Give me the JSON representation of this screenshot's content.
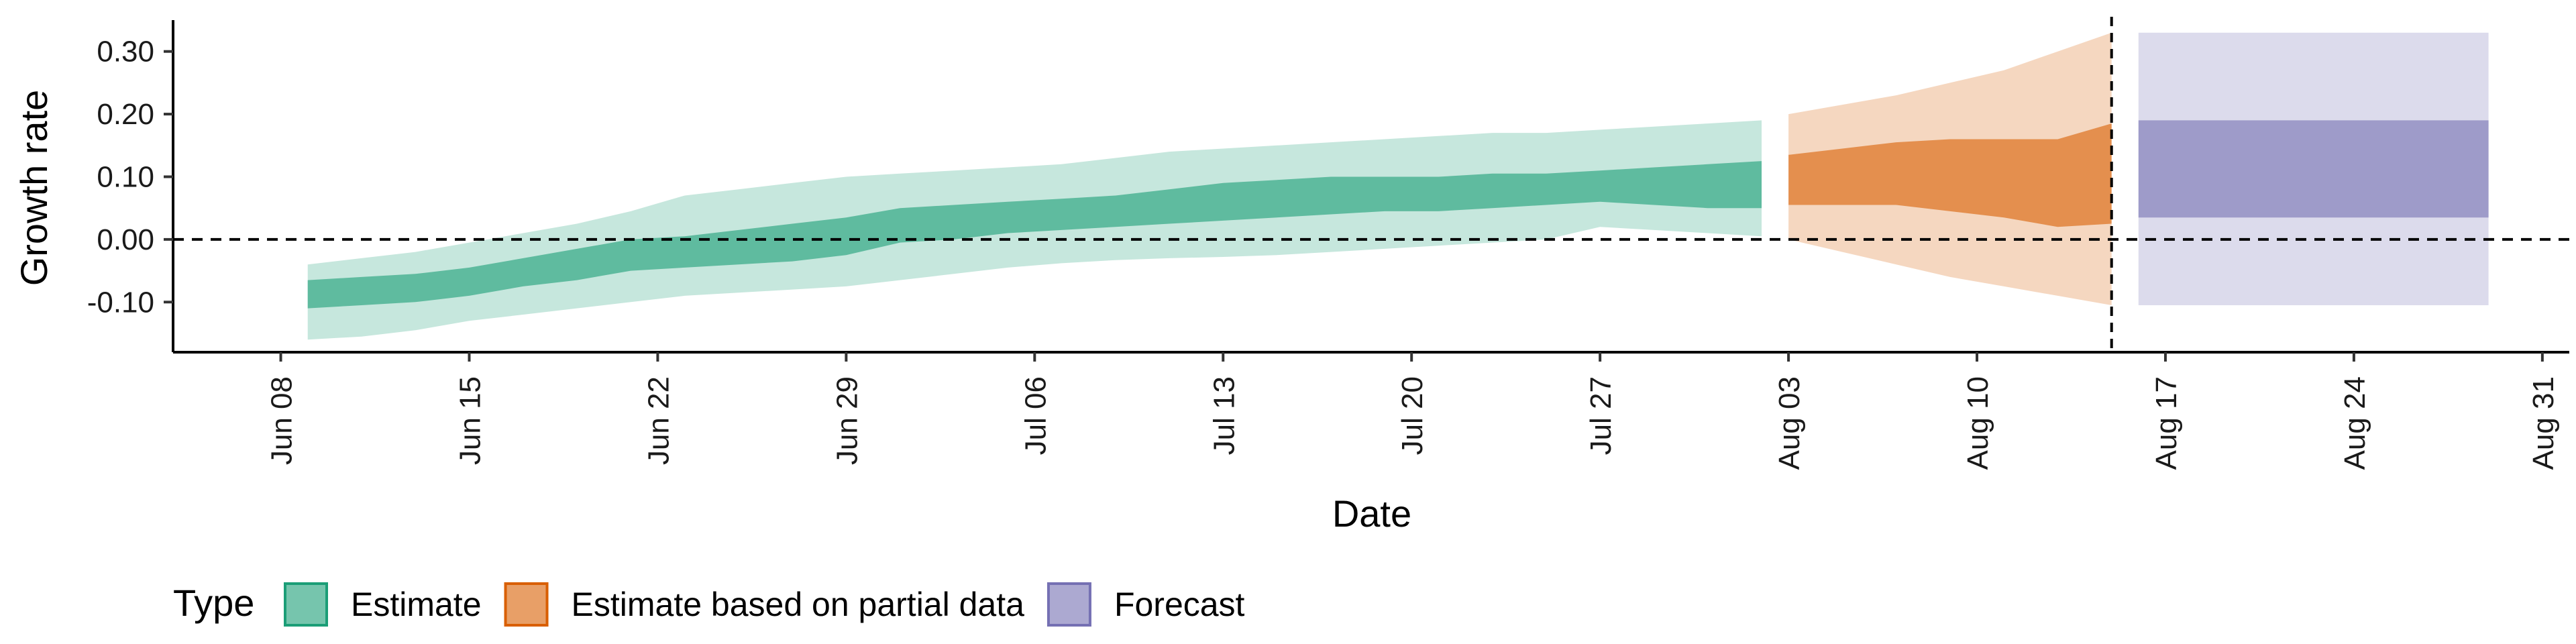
{
  "chart_data": {
    "type": "area",
    "xlabel": "Date",
    "ylabel": "Growth rate",
    "ylim": [
      -0.18,
      0.35
    ],
    "xlim": [
      "2020-06-04",
      "2020-09-01"
    ],
    "y_ticks": [
      -0.1,
      0.0,
      0.1,
      0.2,
      0.3
    ],
    "y_tick_labels": [
      "-0.10",
      "0.00",
      "0.10",
      "0.20",
      "0.30"
    ],
    "x_ticks": [
      "2020-06-08",
      "2020-06-15",
      "2020-06-22",
      "2020-06-29",
      "2020-07-06",
      "2020-07-13",
      "2020-07-20",
      "2020-07-27",
      "2020-08-03",
      "2020-08-10",
      "2020-08-17",
      "2020-08-24",
      "2020-08-31"
    ],
    "x_tick_labels": [
      "Jun 08",
      "Jun 15",
      "Jun 22",
      "Jun 29",
      "Jul 06",
      "Jul 13",
      "Jul 20",
      "Jul 27",
      "Aug 03",
      "Aug 10",
      "Aug 17",
      "Aug 24",
      "Aug 31"
    ],
    "reference_lines": {
      "y": 0.0,
      "x": "2020-08-15"
    },
    "grid": false,
    "legend": {
      "title": "Type",
      "position": "bottom-left",
      "entries": [
        "Estimate",
        "Estimate based on partial data",
        "Forecast"
      ]
    },
    "series": [
      {
        "name": "Estimate",
        "color": "#1b9e77",
        "outer_alpha": 0.25,
        "inner_alpha": 0.6,
        "x": [
          "2020-06-09",
          "2020-06-11",
          "2020-06-13",
          "2020-06-15",
          "2020-06-17",
          "2020-06-19",
          "2020-06-21",
          "2020-06-23",
          "2020-06-25",
          "2020-06-27",
          "2020-06-29",
          "2020-07-01",
          "2020-07-03",
          "2020-07-05",
          "2020-07-07",
          "2020-07-09",
          "2020-07-11",
          "2020-07-13",
          "2020-07-15",
          "2020-07-17",
          "2020-07-19",
          "2020-07-21",
          "2020-07-23",
          "2020-07-25",
          "2020-07-27",
          "2020-07-29",
          "2020-07-31",
          "2020-08-02"
        ],
        "outer_lower": [
          -0.16,
          -0.155,
          -0.145,
          -0.13,
          -0.12,
          -0.11,
          -0.1,
          -0.09,
          -0.085,
          -0.08,
          -0.075,
          -0.065,
          -0.055,
          -0.045,
          -0.038,
          -0.033,
          -0.03,
          -0.028,
          -0.025,
          -0.02,
          -0.015,
          -0.01,
          -0.005,
          0.0,
          0.02,
          0.015,
          0.01,
          0.005
        ],
        "outer_upper": [
          -0.04,
          -0.03,
          -0.02,
          -0.005,
          0.01,
          0.025,
          0.045,
          0.07,
          0.08,
          0.09,
          0.1,
          0.105,
          0.11,
          0.115,
          0.12,
          0.13,
          0.14,
          0.145,
          0.15,
          0.155,
          0.16,
          0.165,
          0.17,
          0.17,
          0.175,
          0.18,
          0.185,
          0.19
        ],
        "inner_lower": [
          -0.11,
          -0.105,
          -0.1,
          -0.09,
          -0.075,
          -0.065,
          -0.05,
          -0.045,
          -0.04,
          -0.035,
          -0.025,
          -0.005,
          0.0,
          0.01,
          0.015,
          0.02,
          0.025,
          0.03,
          0.035,
          0.04,
          0.045,
          0.045,
          0.05,
          0.055,
          0.06,
          0.055,
          0.05,
          0.05
        ],
        "inner_upper": [
          -0.065,
          -0.06,
          -0.055,
          -0.045,
          -0.03,
          -0.015,
          0.0,
          0.005,
          0.015,
          0.025,
          0.035,
          0.05,
          0.055,
          0.06,
          0.065,
          0.07,
          0.08,
          0.09,
          0.095,
          0.1,
          0.1,
          0.1,
          0.105,
          0.105,
          0.11,
          0.115,
          0.12,
          0.125
        ]
      },
      {
        "name": "Estimate based on partial data",
        "color": "#d95f02",
        "outer_alpha": 0.25,
        "inner_alpha": 0.6,
        "x": [
          "2020-08-03",
          "2020-08-05",
          "2020-08-07",
          "2020-08-09",
          "2020-08-11",
          "2020-08-13",
          "2020-08-15"
        ],
        "outer_lower": [
          0.0,
          -0.02,
          -0.04,
          -0.06,
          -0.075,
          -0.09,
          -0.105
        ],
        "outer_upper": [
          0.2,
          0.215,
          0.23,
          0.25,
          0.27,
          0.3,
          0.33
        ],
        "inner_lower": [
          0.055,
          0.055,
          0.055,
          0.045,
          0.035,
          0.02,
          0.025
        ],
        "inner_upper": [
          0.135,
          0.145,
          0.155,
          0.16,
          0.16,
          0.16,
          0.185
        ]
      },
      {
        "name": "Forecast",
        "color": "#7570b3",
        "outer_alpha": 0.25,
        "inner_alpha": 0.6,
        "x": [
          "2020-08-16",
          "2020-08-29"
        ],
        "outer_lower": [
          -0.105,
          -0.105
        ],
        "outer_upper": [
          0.33,
          0.33
        ],
        "inner_lower": [
          0.035,
          0.035
        ],
        "inner_upper": [
          0.19,
          0.19
        ]
      }
    ]
  }
}
